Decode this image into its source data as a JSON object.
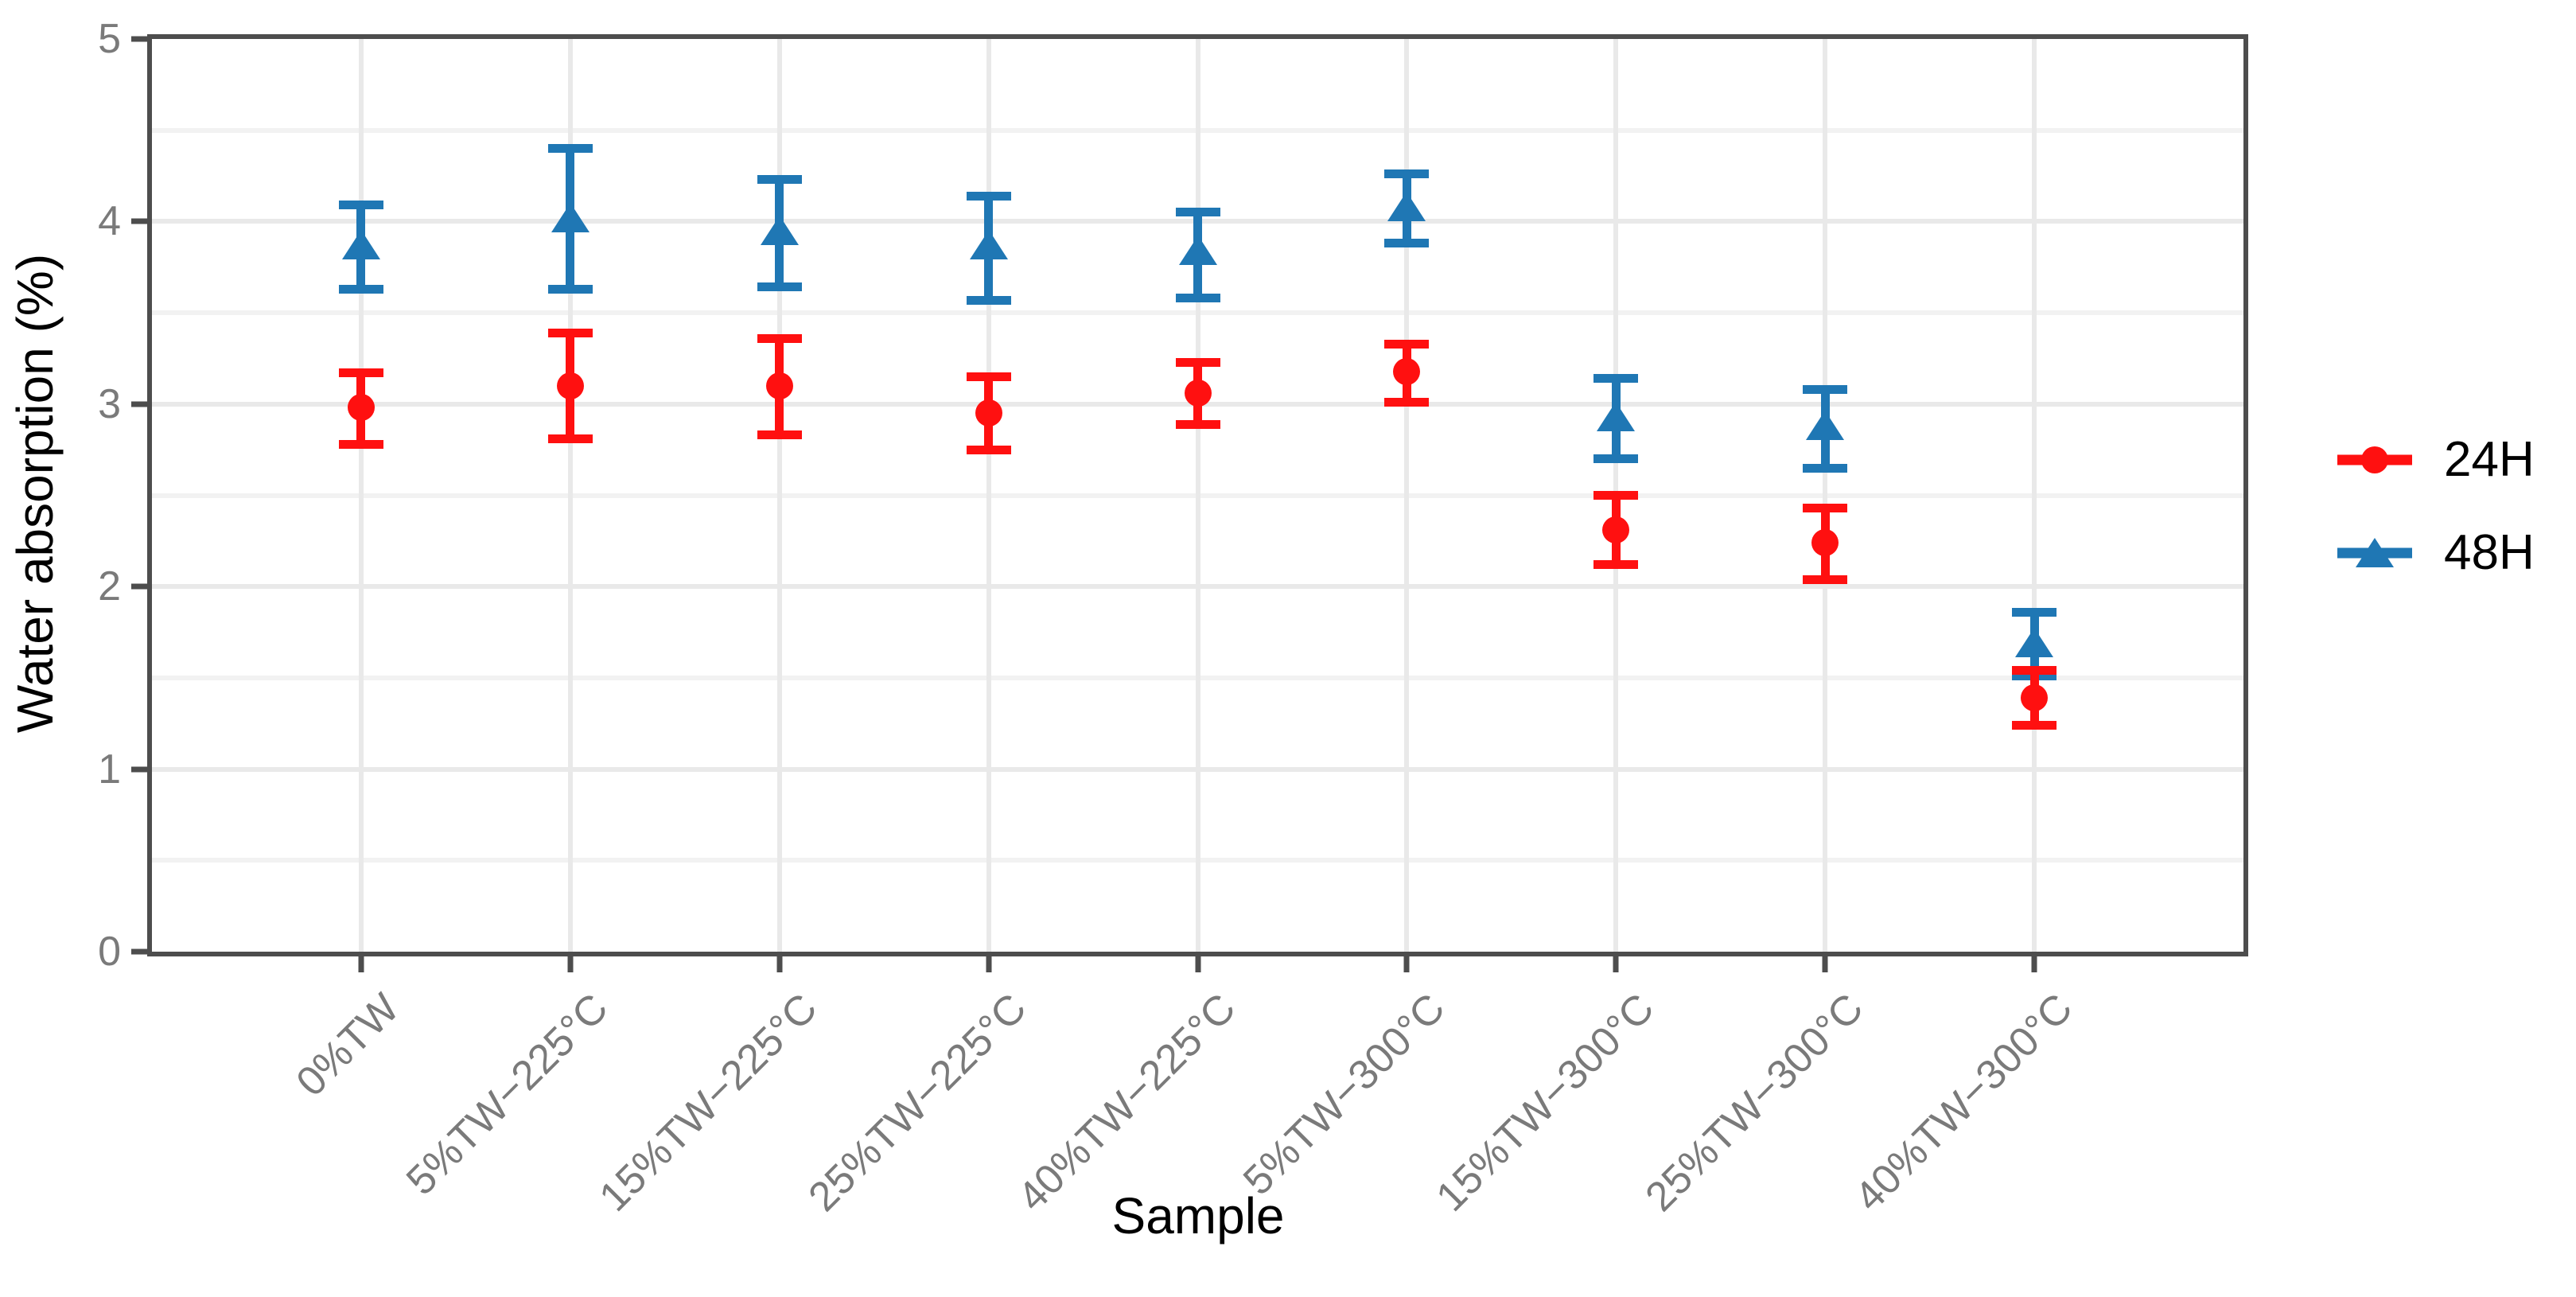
{
  "chart_data": {
    "type": "scatter",
    "subtype": "pointrange-with-errorbars",
    "title": "",
    "xlabel": "Sample",
    "ylabel": "Water absorption (%)",
    "ylim": [
      0,
      5
    ],
    "yticks": [
      0,
      1,
      2,
      3,
      4,
      5
    ],
    "y_minor_gridlines": [
      0.5,
      1.5,
      2.5,
      3.5,
      4.5
    ],
    "grid": true,
    "legend_position": "right",
    "categories": [
      "0%TW",
      "5%TW−225°C",
      "15%TW−225°C",
      "25%TW−225°C",
      "40%TW−225°C",
      "5%TW−300°C",
      "15%TW−300°C",
      "25%TW−300°C",
      "40%TW−300°C"
    ],
    "series": [
      {
        "name": "24H",
        "marker": "circle",
        "color": "#ff1010",
        "means": [
          2.98,
          3.1,
          3.1,
          2.95,
          3.06,
          3.18,
          2.31,
          2.24,
          1.39
        ],
        "ymin": [
          2.78,
          2.81,
          2.83,
          2.75,
          2.89,
          3.01,
          2.12,
          2.04,
          1.24
        ],
        "ymax": [
          3.17,
          3.39,
          3.36,
          3.15,
          3.23,
          3.33,
          2.5,
          2.43,
          1.54
        ]
      },
      {
        "name": "48H",
        "marker": "triangle",
        "color": "#1f77b4",
        "means": [
          3.87,
          4.02,
          3.95,
          3.87,
          3.84,
          4.08,
          2.93,
          2.88,
          1.69
        ],
        "ymin": [
          3.63,
          3.63,
          3.64,
          3.57,
          3.58,
          3.88,
          2.7,
          2.65,
          1.51
        ],
        "ymax": [
          4.09,
          4.4,
          4.23,
          4.14,
          4.05,
          4.26,
          3.14,
          3.08,
          1.86
        ]
      }
    ]
  },
  "style_colors": {
    "panel_border": "#4d4d4d",
    "tick_mark": "#4d4d4d",
    "tick_label": "#7a7a7a",
    "grid_major": "#e9e9e9",
    "grid_minor": "#f2f2f2",
    "background": "#ffffff",
    "series_24h": "#ff1010",
    "series_48h": "#1f77b4"
  }
}
